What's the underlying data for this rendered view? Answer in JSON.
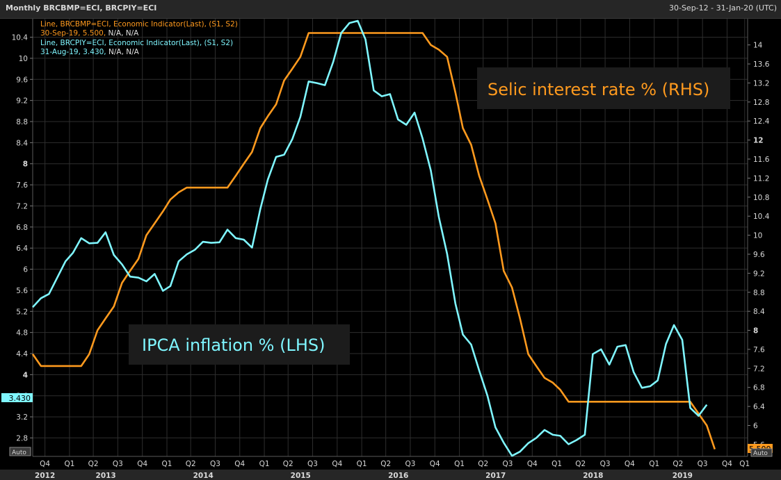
{
  "header": {
    "title": "Monthly BRCBMP=ECI, BRCPIY=ECI",
    "range": "30-Sep-12 - 31-Jan-20 (UTC)"
  },
  "legend": [
    {
      "line1": "Line, BRCBMP=ECI, Economic Indicator(Last), (S1, S2)",
      "line2_value": "30-Sep-19, 5.500,",
      "line2_rest": " N/A, N/A",
      "color": "#ff9a1e"
    },
    {
      "line1": "Line, BRCPIY=ECI, Economic Indicator(Last), (S1, S2)",
      "line2_value": "31-Aug-19, 3.430,",
      "line2_rest": " N/A, N/A",
      "color": "#7ff6ff"
    }
  ],
  "annotations": {
    "selic": "Selic interest rate % (RHS)",
    "ipca": "IPCA inflation % (LHS)"
  },
  "badges": {
    "left_value": "3.430",
    "right_value": "5.500",
    "left_auto": "Auto",
    "right_auto": "Auto"
  },
  "colors": {
    "background": "#000000",
    "panel": "#1c1c1c",
    "grid": "#2e2e2e",
    "selic": "#ff9a1e",
    "ipca": "#7ff6ff",
    "axis_text": "#d9d9d9"
  },
  "chart_data": {
    "type": "line",
    "grid": true,
    "x_axis": {
      "range": [
        "2012-09-30",
        "2020-01-31"
      ],
      "quarter_ticks": [
        {
          "label": "Q4",
          "date": "2012-11-15"
        },
        {
          "label": "Q1",
          "date": "2013-02-15"
        },
        {
          "label": "Q2",
          "date": "2013-05-15"
        },
        {
          "label": "Q3",
          "date": "2013-08-15"
        },
        {
          "label": "Q4",
          "date": "2013-11-15"
        },
        {
          "label": "Q1",
          "date": "2014-02-15"
        },
        {
          "label": "Q2",
          "date": "2014-05-15"
        },
        {
          "label": "Q3",
          "date": "2014-08-15"
        },
        {
          "label": "Q4",
          "date": "2014-11-15"
        },
        {
          "label": "Q1",
          "date": "2015-02-15"
        },
        {
          "label": "Q2",
          "date": "2015-05-15"
        },
        {
          "label": "Q3",
          "date": "2015-08-15"
        },
        {
          "label": "Q4",
          "date": "2015-11-15"
        },
        {
          "label": "Q1",
          "date": "2016-02-15"
        },
        {
          "label": "Q2",
          "date": "2016-05-15"
        },
        {
          "label": "Q3",
          "date": "2016-08-15"
        },
        {
          "label": "Q4",
          "date": "2016-11-15"
        },
        {
          "label": "Q1",
          "date": "2017-02-15"
        },
        {
          "label": "Q2",
          "date": "2017-05-15"
        },
        {
          "label": "Q3",
          "date": "2017-08-15"
        },
        {
          "label": "Q4",
          "date": "2017-11-15"
        },
        {
          "label": "Q1",
          "date": "2018-02-15"
        },
        {
          "label": "Q2",
          "date": "2018-05-15"
        },
        {
          "label": "Q3",
          "date": "2018-08-15"
        },
        {
          "label": "Q4",
          "date": "2018-11-15"
        },
        {
          "label": "Q1",
          "date": "2019-02-15"
        },
        {
          "label": "Q2",
          "date": "2019-05-15"
        },
        {
          "label": "Q3",
          "date": "2019-08-15"
        },
        {
          "label": "Q4",
          "date": "2019-11-15"
        },
        {
          "label": "Q1",
          "date": "2020-01-20"
        }
      ],
      "year_labels": [
        {
          "label": "2012",
          "date": "2012-11-15"
        },
        {
          "label": "2013",
          "date": "2013-07-01"
        },
        {
          "label": "2014",
          "date": "2014-07-01"
        },
        {
          "label": "2015",
          "date": "2015-07-01"
        },
        {
          "label": "2016",
          "date": "2016-07-01"
        },
        {
          "label": "2017",
          "date": "2017-07-01"
        },
        {
          "label": "2018",
          "date": "2018-07-01"
        },
        {
          "label": "2019",
          "date": "2019-06-01"
        }
      ]
    },
    "left_axis": {
      "ylim": [
        2.45,
        10.75
      ],
      "ticks": [
        "2.8",
        "3.2",
        "3.6",
        "4",
        "4.4",
        "4.8",
        "5.2",
        "5.6",
        "6",
        "6.4",
        "6.8",
        "7.2",
        "7.6",
        "8",
        "8.4",
        "8.8",
        "9.2",
        "9.6",
        "10",
        "10.4"
      ],
      "bold": [
        "4",
        "8"
      ]
    },
    "right_axis": {
      "ylim": [
        5.35,
        14.55
      ],
      "ticks": [
        "5.6",
        "6",
        "6.4",
        "6.8",
        "7.2",
        "7.6",
        "8",
        "8.4",
        "8.8",
        "9.2",
        "9.6",
        "10",
        "10.4",
        "10.8",
        "11.2",
        "11.6",
        "12",
        "12.4",
        "12.8",
        "13.2",
        "13.6",
        "14"
      ],
      "bold": [
        "8",
        "12"
      ]
    },
    "series": [
      {
        "name": "BRCBMP=ECI",
        "axis": "right",
        "points": [
          [
            "2012-09-30",
            7.5
          ],
          [
            "2012-10-31",
            7.25
          ],
          [
            "2012-11-30",
            7.25
          ],
          [
            "2012-12-31",
            7.25
          ],
          [
            "2013-01-31",
            7.25
          ],
          [
            "2013-02-28",
            7.25
          ],
          [
            "2013-03-31",
            7.25
          ],
          [
            "2013-04-30",
            7.5
          ],
          [
            "2013-05-31",
            8.0
          ],
          [
            "2013-06-30",
            8.25
          ],
          [
            "2013-07-31",
            8.5
          ],
          [
            "2013-08-31",
            9.0
          ],
          [
            "2013-09-30",
            9.25
          ],
          [
            "2013-10-31",
            9.5
          ],
          [
            "2013-11-30",
            10.0
          ],
          [
            "2013-12-31",
            10.25
          ],
          [
            "2014-01-31",
            10.5
          ],
          [
            "2014-02-28",
            10.75
          ],
          [
            "2014-03-31",
            10.9
          ],
          [
            "2014-04-30",
            11.0
          ],
          [
            "2014-05-31",
            11.0
          ],
          [
            "2014-06-30",
            11.0
          ],
          [
            "2014-07-31",
            11.0
          ],
          [
            "2014-08-31",
            11.0
          ],
          [
            "2014-09-30",
            11.0
          ],
          [
            "2014-10-31",
            11.25
          ],
          [
            "2014-11-30",
            11.5
          ],
          [
            "2014-12-31",
            11.75
          ],
          [
            "2015-01-31",
            12.25
          ],
          [
            "2015-02-28",
            12.5
          ],
          [
            "2015-03-31",
            12.75
          ],
          [
            "2015-04-30",
            13.25
          ],
          [
            "2015-05-31",
            13.5
          ],
          [
            "2015-06-30",
            13.75
          ],
          [
            "2015-07-31",
            14.25
          ],
          [
            "2015-08-31",
            14.25
          ],
          [
            "2015-09-30",
            14.25
          ],
          [
            "2015-10-31",
            14.25
          ],
          [
            "2015-11-30",
            14.25
          ],
          [
            "2015-12-31",
            14.25
          ],
          [
            "2016-01-31",
            14.25
          ],
          [
            "2016-02-29",
            14.25
          ],
          [
            "2016-03-31",
            14.25
          ],
          [
            "2016-04-30",
            14.25
          ],
          [
            "2016-05-31",
            14.25
          ],
          [
            "2016-06-30",
            14.25
          ],
          [
            "2016-07-31",
            14.25
          ],
          [
            "2016-08-31",
            14.25
          ],
          [
            "2016-09-30",
            14.25
          ],
          [
            "2016-10-31",
            14.0
          ],
          [
            "2016-11-30",
            13.9
          ],
          [
            "2016-12-31",
            13.75
          ],
          [
            "2017-01-31",
            13.0
          ],
          [
            "2017-02-28",
            12.25
          ],
          [
            "2017-03-31",
            11.9
          ],
          [
            "2017-04-30",
            11.25
          ],
          [
            "2017-05-31",
            10.75
          ],
          [
            "2017-06-30",
            10.25
          ],
          [
            "2017-07-31",
            9.25
          ],
          [
            "2017-08-31",
            8.9
          ],
          [
            "2017-09-30",
            8.25
          ],
          [
            "2017-10-31",
            7.5
          ],
          [
            "2017-11-30",
            7.25
          ],
          [
            "2017-12-31",
            7.0
          ],
          [
            "2018-01-31",
            6.9
          ],
          [
            "2018-02-28",
            6.75
          ],
          [
            "2018-03-31",
            6.5
          ],
          [
            "2018-04-30",
            6.5
          ],
          [
            "2018-05-31",
            6.5
          ],
          [
            "2018-06-30",
            6.5
          ],
          [
            "2018-07-31",
            6.5
          ],
          [
            "2018-08-31",
            6.5
          ],
          [
            "2018-09-30",
            6.5
          ],
          [
            "2018-10-31",
            6.5
          ],
          [
            "2018-11-30",
            6.5
          ],
          [
            "2018-12-31",
            6.5
          ],
          [
            "2019-01-31",
            6.5
          ],
          [
            "2019-02-28",
            6.5
          ],
          [
            "2019-03-31",
            6.5
          ],
          [
            "2019-04-30",
            6.5
          ],
          [
            "2019-05-31",
            6.5
          ],
          [
            "2019-06-30",
            6.5
          ],
          [
            "2019-07-31",
            6.25
          ],
          [
            "2019-08-31",
            6.0
          ],
          [
            "2019-09-30",
            5.5
          ]
        ]
      },
      {
        "name": "BRCPIY=ECI",
        "axis": "left",
        "points": [
          [
            "2012-09-30",
            5.28
          ],
          [
            "2012-10-31",
            5.45
          ],
          [
            "2012-11-30",
            5.53
          ],
          [
            "2012-12-31",
            5.84
          ],
          [
            "2013-01-31",
            6.15
          ],
          [
            "2013-02-28",
            6.31
          ],
          [
            "2013-03-31",
            6.59
          ],
          [
            "2013-04-30",
            6.49
          ],
          [
            "2013-05-31",
            6.5
          ],
          [
            "2013-06-30",
            6.7
          ],
          [
            "2013-07-31",
            6.27
          ],
          [
            "2013-08-31",
            6.09
          ],
          [
            "2013-09-30",
            5.86
          ],
          [
            "2013-10-31",
            5.84
          ],
          [
            "2013-11-30",
            5.77
          ],
          [
            "2013-12-31",
            5.91
          ],
          [
            "2014-01-31",
            5.59
          ],
          [
            "2014-02-28",
            5.68
          ],
          [
            "2014-03-31",
            6.15
          ],
          [
            "2014-04-30",
            6.28
          ],
          [
            "2014-05-31",
            6.37
          ],
          [
            "2014-06-30",
            6.52
          ],
          [
            "2014-07-31",
            6.5
          ],
          [
            "2014-08-31",
            6.51
          ],
          [
            "2014-09-30",
            6.75
          ],
          [
            "2014-10-31",
            6.59
          ],
          [
            "2014-11-30",
            6.56
          ],
          [
            "2014-12-31",
            6.41
          ],
          [
            "2015-01-31",
            7.14
          ],
          [
            "2015-02-28",
            7.7
          ],
          [
            "2015-03-31",
            8.13
          ],
          [
            "2015-04-30",
            8.17
          ],
          [
            "2015-05-31",
            8.47
          ],
          [
            "2015-06-30",
            8.89
          ],
          [
            "2015-07-31",
            9.56
          ],
          [
            "2015-08-31",
            9.53
          ],
          [
            "2015-09-30",
            9.49
          ],
          [
            "2015-10-31",
            9.93
          ],
          [
            "2015-11-30",
            10.48
          ],
          [
            "2015-12-31",
            10.67
          ],
          [
            "2016-01-31",
            10.71
          ],
          [
            "2016-02-29",
            10.36
          ],
          [
            "2016-03-31",
            9.39
          ],
          [
            "2016-04-30",
            9.28
          ],
          [
            "2016-05-31",
            9.32
          ],
          [
            "2016-06-30",
            8.84
          ],
          [
            "2016-07-31",
            8.74
          ],
          [
            "2016-08-31",
            8.97
          ],
          [
            "2016-09-30",
            8.48
          ],
          [
            "2016-10-31",
            7.87
          ],
          [
            "2016-11-30",
            6.99
          ],
          [
            "2016-12-31",
            6.29
          ],
          [
            "2017-01-31",
            5.35
          ],
          [
            "2017-02-28",
            4.76
          ],
          [
            "2017-03-31",
            4.57
          ],
          [
            "2017-04-30",
            4.08
          ],
          [
            "2017-05-31",
            3.6
          ],
          [
            "2017-06-30",
            3.0
          ],
          [
            "2017-07-31",
            2.71
          ],
          [
            "2017-08-31",
            2.46
          ],
          [
            "2017-09-30",
            2.54
          ],
          [
            "2017-10-31",
            2.7
          ],
          [
            "2017-11-30",
            2.8
          ],
          [
            "2017-12-31",
            2.95
          ],
          [
            "2018-01-31",
            2.86
          ],
          [
            "2018-02-28",
            2.84
          ],
          [
            "2018-03-31",
            2.68
          ],
          [
            "2018-04-30",
            2.76
          ],
          [
            "2018-05-31",
            2.86
          ],
          [
            "2018-06-30",
            4.39
          ],
          [
            "2018-07-31",
            4.48
          ],
          [
            "2018-08-31",
            4.19
          ],
          [
            "2018-09-30",
            4.53
          ],
          [
            "2018-10-31",
            4.56
          ],
          [
            "2018-11-30",
            4.05
          ],
          [
            "2018-12-31",
            3.75
          ],
          [
            "2019-01-31",
            3.78
          ],
          [
            "2019-02-28",
            3.89
          ],
          [
            "2019-03-31",
            4.58
          ],
          [
            "2019-04-30",
            4.94
          ],
          [
            "2019-05-31",
            4.66
          ],
          [
            "2019-06-30",
            3.37
          ],
          [
            "2019-07-31",
            3.22
          ],
          [
            "2019-08-31",
            3.43
          ]
        ]
      }
    ]
  }
}
